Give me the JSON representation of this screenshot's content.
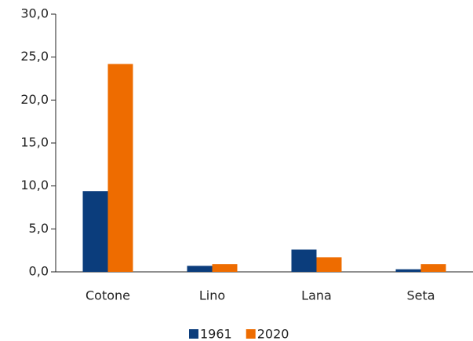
{
  "chart_data": {
    "type": "bar",
    "categories": [
      "Cotone",
      "Lino",
      "Lana",
      "Seta"
    ],
    "series": [
      {
        "name": "1961",
        "color": "#0b3d7c",
        "values": [
          9.4,
          0.7,
          2.6,
          0.3
        ]
      },
      {
        "name": "2020",
        "color": "#ee6c00",
        "values": [
          24.2,
          0.9,
          1.7,
          0.9
        ]
      }
    ],
    "ylim": [
      0,
      30
    ],
    "yticks": [
      {
        "value": 0,
        "label": "0,0"
      },
      {
        "value": 5,
        "label": "5,0"
      },
      {
        "value": 10,
        "label": "10,0"
      },
      {
        "value": 15,
        "label": "15,0"
      },
      {
        "value": 20,
        "label": "20,0"
      },
      {
        "value": 25,
        "label": "25,0"
      },
      {
        "value": 30,
        "label": "30,0"
      }
    ],
    "legend": "bottom"
  }
}
